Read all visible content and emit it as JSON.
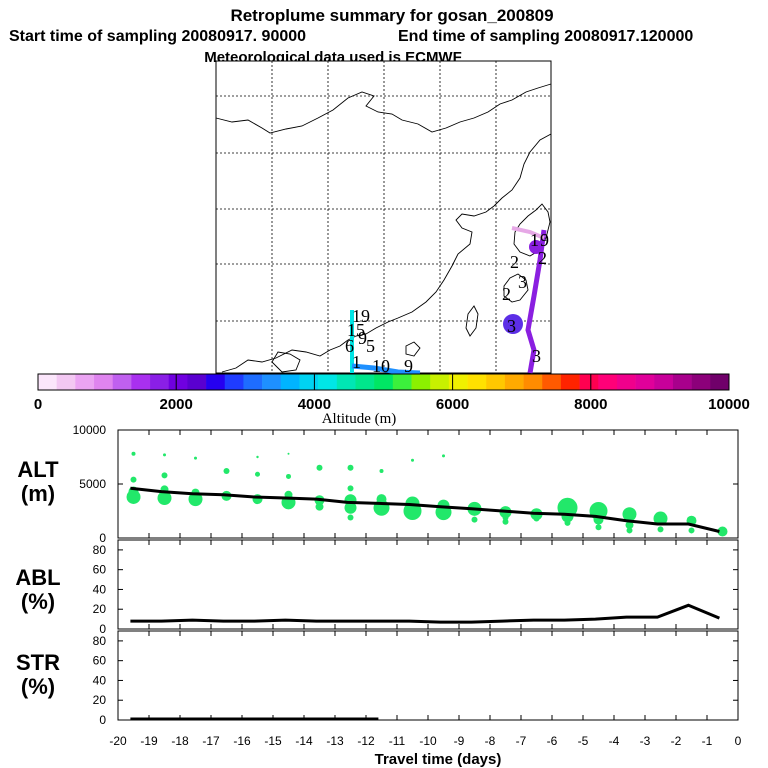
{
  "title": {
    "line1": "Retroplume summary for gosan_200809",
    "line2a": "Start time of sampling 20080917. 90000",
    "line2b": "End time of sampling 20080917.120000",
    "line3": "Meteorological data used is ECMWF"
  },
  "map": {
    "labels": [
      "19",
      "15",
      "9",
      "6",
      "5",
      "1",
      "10",
      "9",
      "2",
      "2",
      "3",
      "3",
      "1",
      "9",
      "2",
      "3"
    ],
    "colors": {
      "plume_cyan": "#00e5e5",
      "plume_purple": "#8a1fe0",
      "plume_violet": "#5c2ee6",
      "plume_pink": "#e6a8e6",
      "plume_blue": "#1e90ff"
    }
  },
  "colorbar": {
    "colors": [
      "#fbe6fb",
      "#f3c8f3",
      "#eba4f3",
      "#df84ef",
      "#c060ef",
      "#a930ef",
      "#8a1fe6",
      "#7000e0",
      "#5a00d0",
      "#2600f0",
      "#1f3cff",
      "#1e6dff",
      "#1e90ff",
      "#00b4ff",
      "#00d3f2",
      "#00e6e6",
      "#00e6b4",
      "#00e68c",
      "#00e664",
      "#3cf03c",
      "#8cf000",
      "#c8f000",
      "#f0f000",
      "#ffe100",
      "#ffc800",
      "#ffaa00",
      "#ff8c00",
      "#ff5a00",
      "#ff2300",
      "#ff0050",
      "#ff0078",
      "#f0008c",
      "#e0009a",
      "#c8009a",
      "#a8008c",
      "#8c007a",
      "#70006a"
    ],
    "ticks": [
      "0",
      "2000",
      "4000",
      "6000",
      "8000",
      "10000"
    ],
    "label": "Altitude (m)"
  },
  "chart_data": [
    {
      "type": "line",
      "panel": "ALT",
      "ylabel": "ALT (m)",
      "ylim": [
        0,
        10000
      ],
      "yticks": [
        "10000",
        "5000",
        "0"
      ],
      "x": [
        -19.6,
        -18.6,
        -17.6,
        -16.6,
        -15.6,
        -14.6,
        -13.6,
        -12.6,
        -11.6,
        -10.6,
        -9.6,
        -8.6,
        -7.6,
        -6.6,
        -5.6,
        -4.6,
        -3.6,
        -2.6,
        -1.6,
        -0.6
      ],
      "values": [
        4600,
        4300,
        4100,
        4000,
        3800,
        3700,
        3600,
        3300,
        3200,
        3100,
        2900,
        2700,
        2500,
        2300,
        2200,
        2000,
        1600,
        1300,
        1300,
        600
      ],
      "scatter": {
        "color": "#22e86a",
        "points": [
          [
            -19.5,
            3800,
            7
          ],
          [
            -19.5,
            4300,
            5
          ],
          [
            -19.5,
            5400,
            3
          ],
          [
            -19.5,
            7800,
            2
          ],
          [
            -18.5,
            3700,
            7
          ],
          [
            -18.5,
            4500,
            4
          ],
          [
            -18.5,
            5800,
            3
          ],
          [
            -18.5,
            7700,
            1.5
          ],
          [
            -17.5,
            3600,
            7
          ],
          [
            -17.5,
            4200,
            4
          ],
          [
            -17.5,
            7400,
            1.5
          ],
          [
            -16.5,
            3900,
            5
          ],
          [
            -16.5,
            6200,
            3
          ],
          [
            -15.5,
            3600,
            5
          ],
          [
            -15.5,
            5900,
            2.5
          ],
          [
            -15.5,
            7500,
            1.2
          ],
          [
            -14.5,
            3300,
            7
          ],
          [
            -14.5,
            4000,
            4
          ],
          [
            -14.5,
            5700,
            2.5
          ],
          [
            -14.5,
            7800,
            1
          ],
          [
            -13.5,
            2900,
            4
          ],
          [
            -13.5,
            3500,
            5
          ],
          [
            -13.5,
            6500,
            3
          ],
          [
            -12.5,
            2800,
            6
          ],
          [
            -12.5,
            3500,
            6
          ],
          [
            -12.5,
            4600,
            3
          ],
          [
            -12.5,
            1900,
            3
          ],
          [
            -12.5,
            6500,
            3
          ],
          [
            -11.5,
            2800,
            8
          ],
          [
            -11.5,
            3600,
            5
          ],
          [
            -11.5,
            6200,
            2
          ],
          [
            -10.5,
            2500,
            9
          ],
          [
            -10.5,
            3200,
            7
          ],
          [
            -10.5,
            7200,
            1.5
          ],
          [
            -9.5,
            2400,
            8
          ],
          [
            -9.5,
            3000,
            6
          ],
          [
            -9.5,
            7600,
            1.5
          ],
          [
            -8.5,
            2700,
            7
          ],
          [
            -8.5,
            1700,
            3
          ],
          [
            -7.5,
            2400,
            6
          ],
          [
            -7.5,
            1900,
            3
          ],
          [
            -7.5,
            1500,
            3
          ],
          [
            -6.5,
            2200,
            6
          ],
          [
            -6.5,
            1800,
            3
          ],
          [
            -5.5,
            2800,
            10
          ],
          [
            -5.5,
            2000,
            6
          ],
          [
            -5.5,
            1400,
            3
          ],
          [
            -4.5,
            2500,
            9
          ],
          [
            -4.5,
            1700,
            5
          ],
          [
            -4.5,
            1000,
            3
          ],
          [
            -3.5,
            2200,
            7
          ],
          [
            -3.5,
            1200,
            4
          ],
          [
            -3.5,
            700,
            3
          ],
          [
            -2.5,
            1800,
            7
          ],
          [
            -2.5,
            800,
            3
          ],
          [
            -1.5,
            1600,
            5
          ],
          [
            -1.5,
            700,
            3
          ],
          [
            -0.5,
            600,
            5
          ]
        ]
      }
    },
    {
      "type": "line",
      "panel": "ABL",
      "ylabel": "ABL (%)",
      "ylim": [
        0,
        90
      ],
      "yticks": [
        "80",
        "60",
        "40",
        "20",
        "0"
      ],
      "x": [
        -19.6,
        -18.6,
        -17.6,
        -16.6,
        -15.6,
        -14.6,
        -13.6,
        -12.6,
        -11.6,
        -10.6,
        -9.6,
        -8.6,
        -7.6,
        -6.6,
        -5.6,
        -4.6,
        -3.6,
        -2.6,
        -1.6,
        -0.6
      ],
      "values": [
        8,
        8,
        9,
        8,
        8,
        9,
        8,
        8,
        8,
        8,
        7,
        7,
        8,
        9,
        9,
        10,
        12,
        12,
        24,
        11
      ]
    },
    {
      "type": "line",
      "panel": "STR",
      "ylabel": "STR (%)",
      "ylim": [
        0,
        90
      ],
      "yticks": [
        "80",
        "60",
        "40",
        "20",
        "0"
      ],
      "x": [
        -19.6,
        -18.6,
        -17.6,
        -16.6,
        -15.6,
        -14.6,
        -13.6,
        -12.6,
        -11.6
      ],
      "values": [
        1,
        1,
        1,
        1,
        1,
        1,
        1,
        1,
        1
      ]
    }
  ],
  "xaxis": {
    "label": "Travel time (days)",
    "ticks": [
      "-20",
      "-19",
      "-18",
      "-17",
      "-16",
      "-15",
      "-14",
      "-13",
      "-12",
      "-11",
      "-10",
      "-9",
      "-8",
      "-7",
      "-6",
      "-5",
      "-4",
      "-3",
      "-2",
      "-1",
      "0"
    ],
    "range": [
      -20,
      0
    ]
  },
  "panel_labels": {
    "alt1": "ALT",
    "alt2": "(m)",
    "abl1": "ABL",
    "abl2": "(%)",
    "str1": "STR",
    "str2": "(%)"
  }
}
